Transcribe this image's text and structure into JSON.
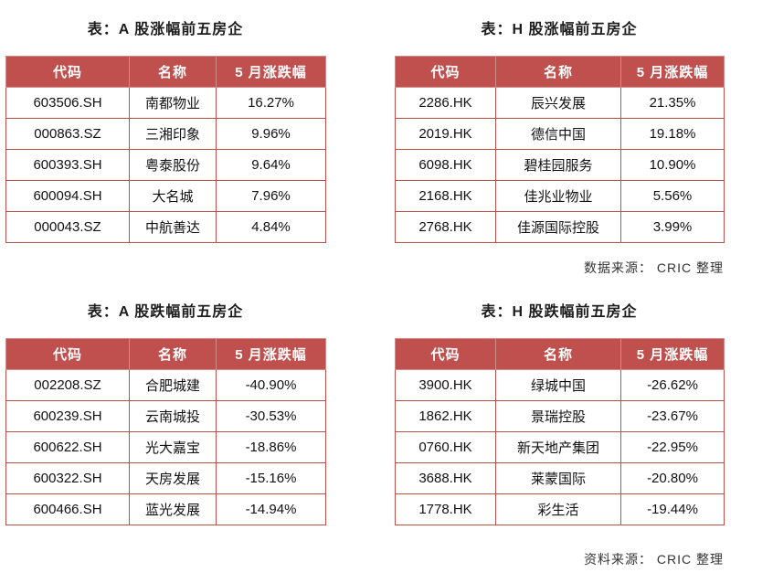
{
  "style": {
    "header_bg": "#c0504d",
    "header_text_color": "#ffffff",
    "border_color": "#c0504d",
    "background": "#ffffff"
  },
  "tables": [
    {
      "title": "表：A 股涨幅前五房企",
      "headers": [
        "代码",
        "名称",
        "5 月涨跌幅"
      ],
      "rows": [
        [
          "603506.SH",
          "南都物业",
          "16.27%"
        ],
        [
          "000863.SZ",
          "三湘印象",
          "9.96%"
        ],
        [
          "600393.SH",
          "粤泰股份",
          "9.64%"
        ],
        [
          "600094.SH",
          "大名城",
          "7.96%"
        ],
        [
          "000043.SZ",
          "中航善达",
          "4.84%"
        ]
      ]
    },
    {
      "title": "表：H 股涨幅前五房企",
      "headers": [
        "代码",
        "名称",
        "5 月涨跌幅"
      ],
      "rows": [
        [
          "2286.HK",
          "辰兴发展",
          "21.35%"
        ],
        [
          "2019.HK",
          "德信中国",
          "19.18%"
        ],
        [
          "6098.HK",
          "碧桂园服务",
          "10.90%"
        ],
        [
          "2168.HK",
          "佳兆业物业",
          "5.56%"
        ],
        [
          "2768.HK",
          "佳源国际控股",
          "3.99%"
        ]
      ]
    },
    {
      "title": "表：A 股跌幅前五房企",
      "headers": [
        "代码",
        "名称",
        "5 月涨跌幅"
      ],
      "rows": [
        [
          "002208.SZ",
          "合肥城建",
          "-40.90%"
        ],
        [
          "600239.SH",
          "云南城投",
          "-30.53%"
        ],
        [
          "600622.SH",
          "光大嘉宝",
          "-18.86%"
        ],
        [
          "600322.SH",
          "天房发展",
          "-15.16%"
        ],
        [
          "600466.SH",
          "蓝光发展",
          "-14.94%"
        ]
      ]
    },
    {
      "title": "表：H 股跌幅前五房企",
      "headers": [
        "代码",
        "名称",
        "5 月涨跌幅"
      ],
      "rows": [
        [
          "3900.HK",
          "绿城中国",
          "-26.62%"
        ],
        [
          "1862.HK",
          "景瑞控股",
          "-23.67%"
        ],
        [
          "0760.HK",
          "新天地产集团",
          "-22.95%"
        ],
        [
          "3688.HK",
          "莱蒙国际",
          "-20.80%"
        ],
        [
          "1778.HK",
          "彩生活",
          "-19.44%"
        ]
      ]
    }
  ],
  "notes": {
    "top_source": "数据来源：  CRIC 整理",
    "bottom_source": "资料来源：  CRIC 整理"
  }
}
